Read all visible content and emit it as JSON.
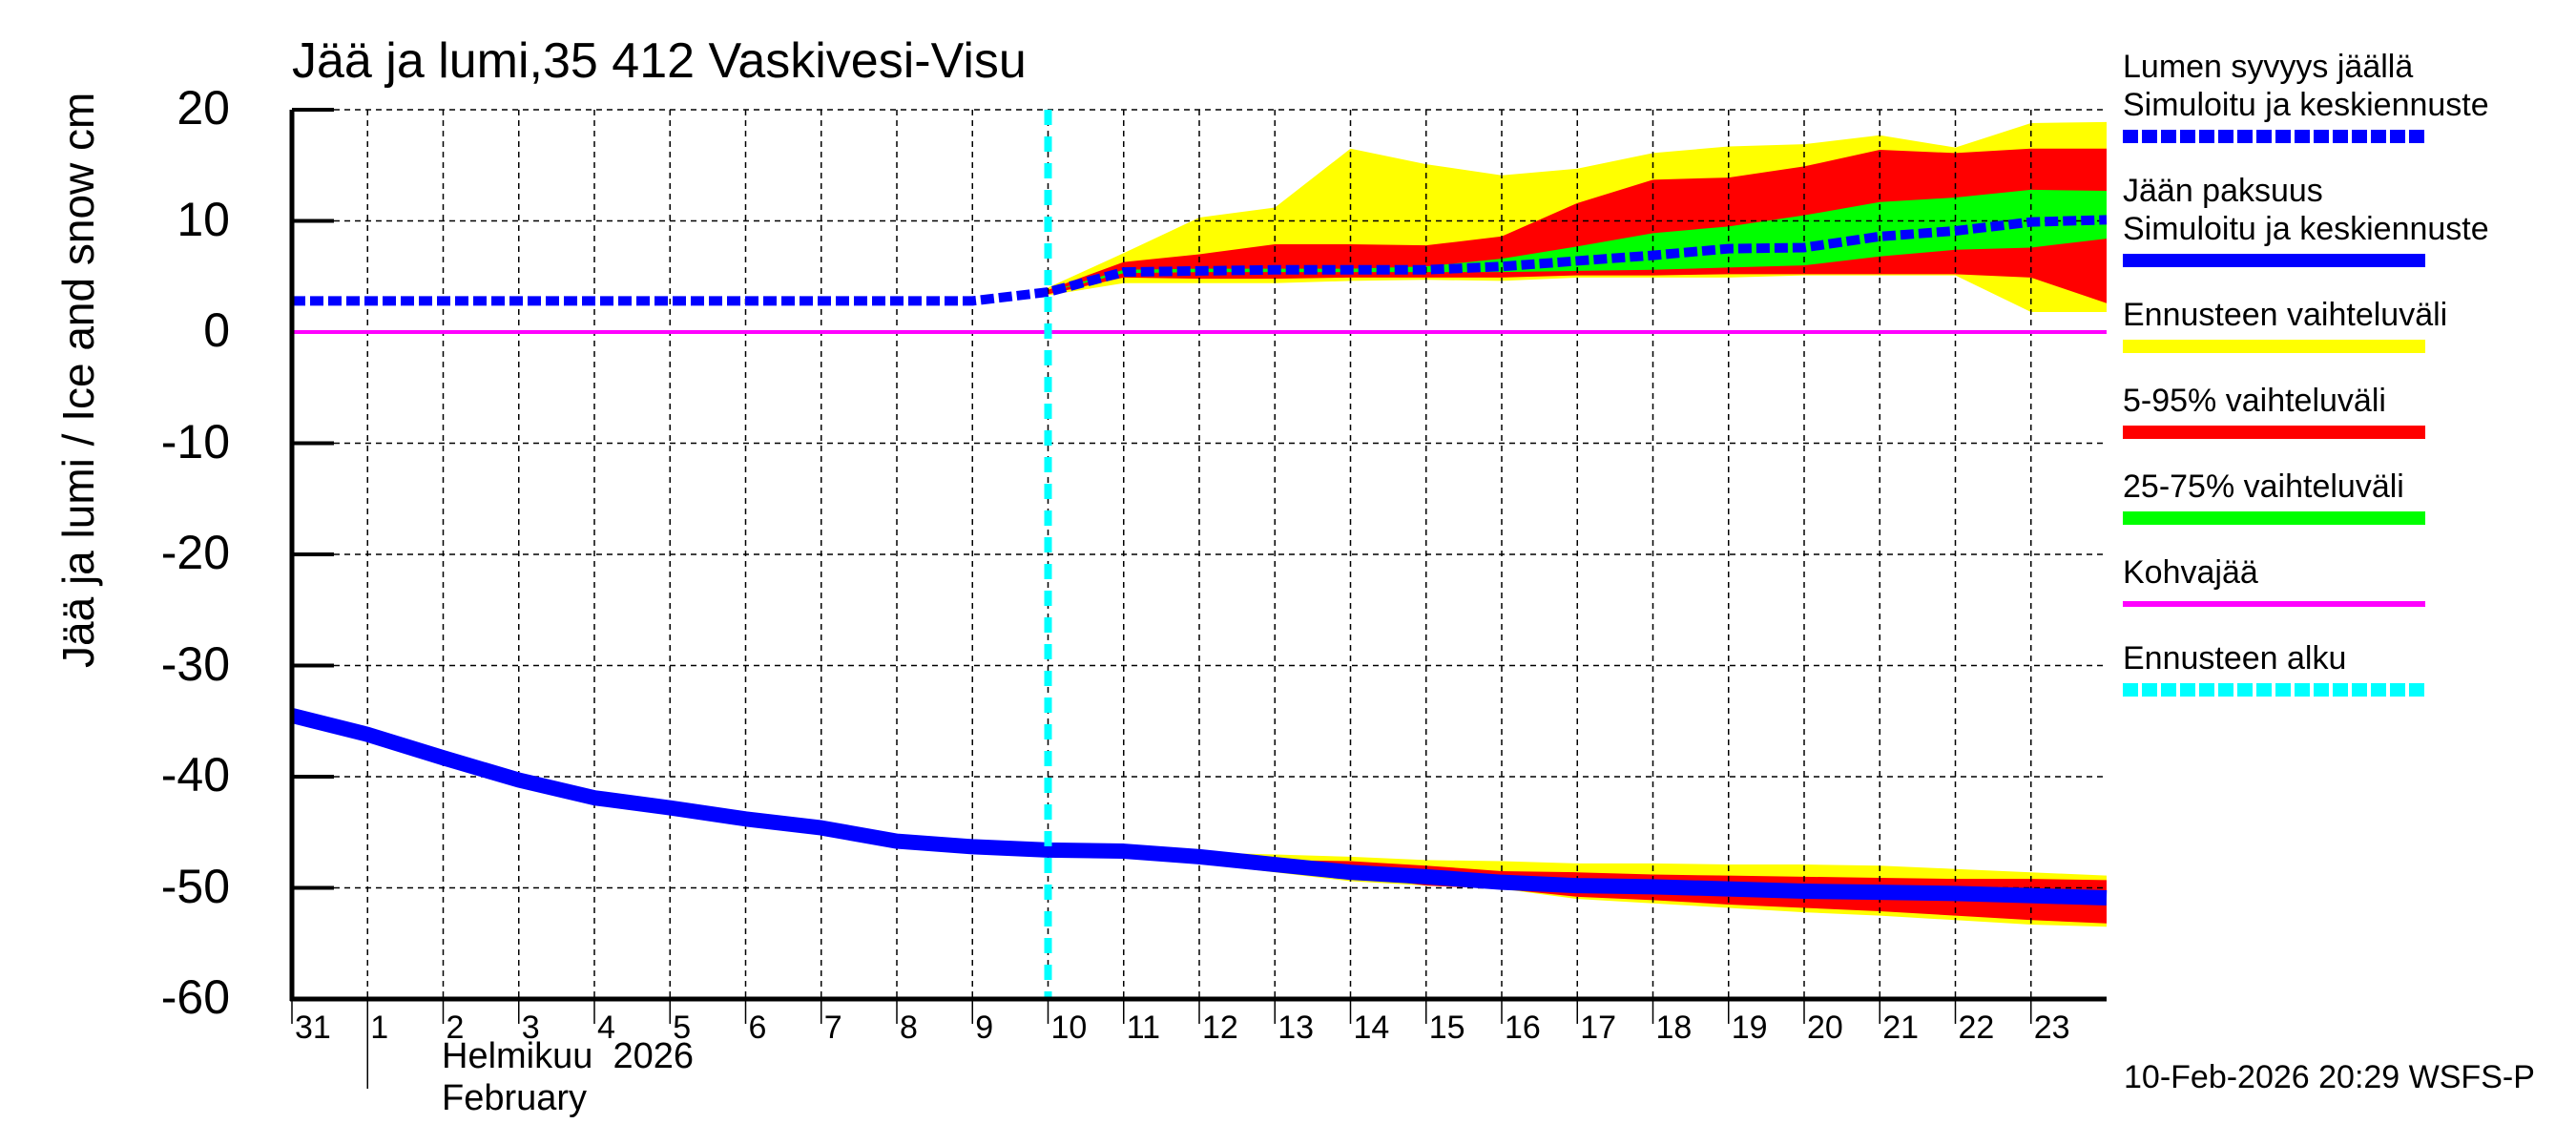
{
  "title": "Jää ja lumi,35 412 Vaskivesi-Visu",
  "ylabel": "Jää ja lumi / Ice and snow    cm",
  "month_label": "Helmikuu  2026\nFebruary",
  "footer": "10-Feb-2026 20:29 WSFS-P",
  "colors": {
    "snow_mean": "#0000ff",
    "ice_mean": "#0000ff",
    "range_full": "#ffff00",
    "range_5_95": "#ff0000",
    "range_25_75": "#00ff00",
    "slush_ice": "#ff00ff",
    "forecast_start": "#00ffff",
    "grid": "#000000"
  },
  "legend": {
    "items": [
      {
        "label": "Lumen syvyys jäällä",
        "sublabel": "Simuloitu ja keskiennuste",
        "style": "dashed",
        "color": "#0000ff"
      },
      {
        "label": "Jään paksuus",
        "sublabel": "Simuloitu ja keskiennuste",
        "style": "solid",
        "color": "#0000ff"
      },
      {
        "label": "Ennusteen vaihteluväli",
        "style": "solid",
        "color": "#ffff00"
      },
      {
        "label": "5-95% vaihteluväli",
        "style": "solid",
        "color": "#ff0000"
      },
      {
        "label": "25-75% vaihteluväli",
        "style": "solid",
        "color": "#00ff00"
      },
      {
        "label": "Kohvajää",
        "style": "thin",
        "color": "#ff00ff"
      },
      {
        "label": "Ennusteen alku",
        "style": "dashed",
        "color": "#00ffff"
      }
    ]
  },
  "chart_data": {
    "type": "area",
    "title": "Jää ja lumi,35 412 Vaskivesi-Visu",
    "xlabel": "Helmikuu 2026 / February",
    "ylabel": "Jää ja lumi / Ice and snow    cm",
    "ylim": [
      -60,
      20
    ],
    "yticks": [
      20,
      10,
      0,
      -10,
      -20,
      -30,
      -40,
      -50,
      -60
    ],
    "xlim_days": [
      0,
      24
    ],
    "x_tick_labels": [
      "31",
      "1",
      "2",
      "3",
      "4",
      "5",
      "6",
      "7",
      "8",
      "9",
      "10",
      "11",
      "12",
      "13",
      "14",
      "15",
      "16",
      "17",
      "18",
      "19",
      "20",
      "21",
      "22",
      "23"
    ],
    "grid": true,
    "legend_position": "right",
    "forecast_start_day": 10,
    "slush_ice_level": 0,
    "snow_history": {
      "x": [
        0,
        1,
        2,
        3,
        4,
        5,
        6,
        7,
        8,
        9,
        10
      ],
      "values": [
        2.8,
        2.8,
        2.8,
        2.8,
        2.8,
        2.8,
        2.8,
        2.8,
        2.8,
        2.8,
        3.6
      ]
    },
    "snow_forecast": {
      "x": [
        10,
        11,
        12,
        13,
        14,
        15,
        16,
        17,
        18,
        19,
        20,
        21,
        22,
        23,
        24
      ],
      "mean": [
        3.6,
        5.4,
        5.5,
        5.6,
        5.6,
        5.6,
        5.9,
        6.4,
        6.9,
        7.5,
        7.6,
        8.6,
        9.1,
        9.9,
        10.1
      ],
      "p25": [
        3.6,
        5.3,
        5.4,
        5.4,
        5.4,
        5.4,
        5.4,
        5.5,
        5.6,
        5.8,
        6.0,
        6.8,
        7.4,
        7.6,
        8.4
      ],
      "p75": [
        3.6,
        5.6,
        5.7,
        5.7,
        5.7,
        5.9,
        6.6,
        7.7,
        8.9,
        9.5,
        10.5,
        11.7,
        12.1,
        12.8,
        12.7
      ],
      "p5": [
        3.4,
        4.9,
        4.8,
        4.8,
        4.9,
        4.9,
        4.9,
        5.1,
        5.1,
        5.2,
        5.2,
        5.2,
        5.2,
        4.9,
        2.6
      ],
      "p95": [
        3.8,
        6.3,
        7.0,
        7.9,
        7.9,
        7.8,
        8.6,
        11.6,
        13.7,
        13.9,
        14.9,
        16.4,
        16.1,
        16.5,
        16.5
      ],
      "min": [
        3.3,
        4.4,
        4.4,
        4.4,
        4.6,
        4.7,
        4.6,
        4.9,
        4.9,
        4.9,
        5.1,
        5.1,
        5.1,
        1.8,
        1.8
      ],
      "max": [
        4.0,
        7.1,
        10.3,
        11.2,
        16.5,
        15.1,
        14.1,
        14.7,
        16.1,
        16.7,
        16.9,
        17.7,
        16.6,
        18.8,
        18.9
      ]
    },
    "ice_history": {
      "x": [
        0,
        1,
        2,
        3,
        4,
        5,
        6,
        7,
        8,
        9,
        10
      ],
      "values": [
        -34.5,
        -36.2,
        -38.3,
        -40.3,
        -41.9,
        -42.8,
        -43.8,
        -44.6,
        -45.8,
        -46.3,
        -46.6
      ]
    },
    "ice_forecast": {
      "x": [
        10,
        11,
        12,
        13,
        14,
        15,
        16,
        17,
        18,
        19,
        20,
        21,
        22,
        23,
        24
      ],
      "mean": [
        -46.6,
        -46.7,
        -47.2,
        -47.9,
        -48.6,
        -49.0,
        -49.5,
        -49.8,
        -49.9,
        -50.1,
        -50.3,
        -50.4,
        -50.5,
        -50.7,
        -50.9
      ],
      "p25": [
        -46.6,
        -46.7,
        -47.2,
        -47.9,
        -48.7,
        -49.1,
        -49.6,
        -49.9,
        -50.0,
        -50.2,
        -50.4,
        -50.5,
        -50.6,
        -50.8,
        -51.0
      ],
      "p75": [
        -46.6,
        -46.7,
        -47.2,
        -47.8,
        -48.5,
        -48.9,
        -49.3,
        -49.5,
        -49.6,
        -49.8,
        -50.0,
        -50.2,
        -50.3,
        -50.5,
        -50.7
      ],
      "p5": [
        -46.6,
        -46.7,
        -47.3,
        -48.1,
        -48.9,
        -49.8,
        -50.1,
        -50.8,
        -51.1,
        -51.5,
        -51.8,
        -52.1,
        -52.5,
        -52.9,
        -53.2
      ],
      "p95": [
        -46.6,
        -46.7,
        -47.1,
        -47.5,
        -47.6,
        -48.0,
        -48.5,
        -48.6,
        -48.8,
        -48.9,
        -49.0,
        -49.1,
        -49.2,
        -49.2,
        -49.3
      ],
      "min": [
        -46.6,
        -46.8,
        -47.8,
        -48.6,
        -49.4,
        -49.8,
        -50.1,
        -51.0,
        -51.4,
        -51.8,
        -52.2,
        -52.5,
        -52.9,
        -53.3,
        -53.5
      ],
      "max": [
        -46.6,
        -46.6,
        -46.8,
        -47.0,
        -47.2,
        -47.5,
        -47.6,
        -47.8,
        -47.8,
        -47.9,
        -47.9,
        -48.0,
        -48.3,
        -48.6,
        -48.9
      ]
    }
  }
}
